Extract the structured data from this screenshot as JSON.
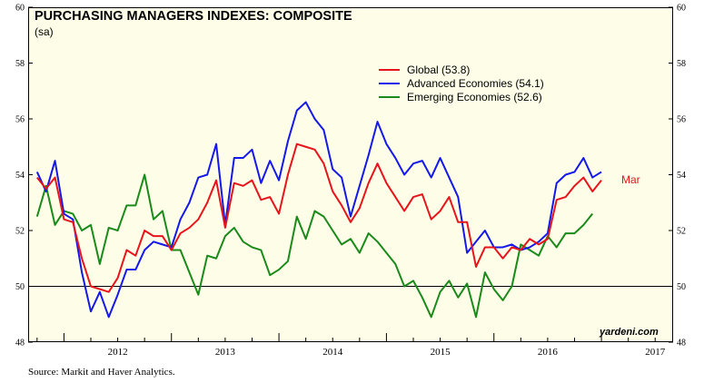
{
  "chart_data": {
    "type": "line",
    "title": "PURCHASING MANAGERS INDEXES: COMPOSITE",
    "subtitle": "(sa)",
    "source": "Source:  Markit and Haver Analytics.",
    "watermark": "yardeni.com",
    "ylim": [
      48,
      60
    ],
    "yticks": [
      "48",
      "50",
      "52",
      "54",
      "56",
      "58",
      "60"
    ],
    "reference_line": 50,
    "x_years": [
      "2012",
      "2013",
      "2014",
      "2015",
      "2016",
      "2017"
    ],
    "x_start": 2011.667,
    "x_end": 2017.667,
    "end_label": "Mar",
    "series": [
      {
        "name": "Global (53.8)",
        "color": "#e8141b",
        "start": "2011-10",
        "values": [
          53.9,
          53.5,
          53.9,
          52.4,
          52.3,
          51.0,
          50.0,
          49.9,
          49.8,
          50.3,
          51.3,
          51.1,
          52.0,
          51.8,
          51.8,
          51.3,
          51.9,
          52.1,
          52.4,
          53.0,
          53.8,
          52.1,
          53.7,
          53.6,
          53.8,
          53.1,
          53.2,
          52.6,
          54.0,
          55.1,
          55.0,
          54.9,
          54.4,
          53.4,
          52.9,
          52.3,
          52.8,
          53.7,
          54.4,
          53.7,
          53.2,
          52.7,
          53.2,
          53.3,
          52.4,
          52.7,
          53.2,
          52.3,
          52.3,
          50.7,
          51.4,
          51.4,
          51.0,
          51.4,
          51.3,
          51.7,
          51.5,
          51.7,
          53.1,
          53.2,
          53.6,
          53.9,
          53.4,
          53.8
        ]
      },
      {
        "name": "Advanced Economies (54.1)",
        "color": "#1418e8",
        "start": "2011-10",
        "values": [
          54.1,
          53.4,
          54.5,
          52.6,
          52.4,
          50.5,
          49.1,
          49.8,
          48.9,
          49.7,
          50.6,
          50.6,
          51.3,
          51.6,
          51.5,
          51.4,
          52.4,
          53.0,
          53.9,
          54.0,
          55.1,
          52.2,
          54.6,
          54.6,
          54.9,
          53.7,
          54.5,
          53.8,
          55.2,
          56.3,
          56.6,
          56.0,
          55.6,
          54.2,
          53.9,
          52.5,
          53.6,
          54.7,
          55.9,
          55.1,
          54.6,
          54.0,
          54.4,
          54.5,
          53.9,
          54.6,
          53.9,
          53.2,
          51.2,
          51.6,
          52.0,
          51.4,
          51.4,
          51.5,
          51.3,
          51.4,
          51.6,
          51.9,
          53.7,
          54.0,
          54.1,
          54.6,
          53.9,
          54.1
        ]
      },
      {
        "name": "Emerging Economies (52.6)",
        "color": "#1a8a1a",
        "start": "2011-10",
        "values": [
          52.5,
          53.6,
          52.2,
          52.7,
          52.6,
          52.0,
          52.2,
          50.8,
          52.1,
          52.0,
          52.9,
          52.9,
          54.0,
          52.4,
          52.7,
          51.3,
          51.3,
          50.5,
          49.7,
          51.1,
          51.0,
          51.8,
          52.1,
          51.6,
          51.4,
          51.3,
          50.4,
          50.6,
          50.9,
          52.5,
          51.7,
          52.7,
          52.5,
          52.0,
          51.5,
          51.7,
          51.2,
          51.9,
          51.6,
          51.2,
          50.8,
          50.0,
          50.2,
          49.6,
          48.9,
          49.8,
          50.2,
          49.6,
          50.1,
          48.9,
          50.5,
          49.9,
          49.5,
          50.0,
          51.5,
          51.3,
          51.1,
          51.8,
          51.4,
          51.9,
          51.9,
          52.2,
          52.6
        ]
      }
    ]
  }
}
